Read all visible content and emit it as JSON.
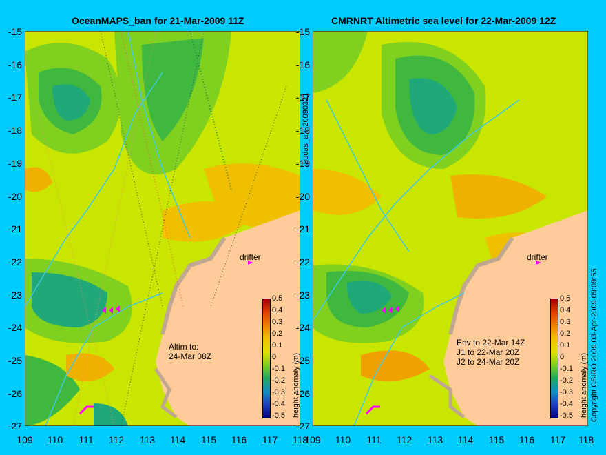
{
  "left_panel": {
    "title": "OceanMAPS_ban for 21-Mar-2009 11Z",
    "annotation": "Altim to:\n24-Mar 08Z",
    "drifter_label": "drifter"
  },
  "right_panel": {
    "title": "CMRNRT Altimetric sea level  for 22-Mar-2009 12Z",
    "annotation": "Env to 22-Mar 14Z\nJ1 to 22-Mar 20Z\nJ2 to 24-Mar 20Z",
    "drifter_label": "drifter"
  },
  "axes": {
    "y_ticks": [
      "-15",
      "-16",
      "-17",
      "-18",
      "-19",
      "-20",
      "-21",
      "-22",
      "-23",
      "-24",
      "-25",
      "-26",
      "-27"
    ],
    "x_ticks": [
      "109",
      "110",
      "111",
      "112",
      "113",
      "114",
      "115",
      "116",
      "117",
      "118"
    ]
  },
  "colorbar": {
    "label": "height anomaly (m)",
    "ticks": [
      "0.5",
      "0.4",
      "0.3",
      "0.2",
      "0.1",
      "0",
      "-0.1",
      "-0.2",
      "-0.3",
      "-0.4",
      "-0.5"
    ],
    "range": [
      -0.5,
      0.5
    ]
  },
  "side_labels": {
    "analysis_id": "bodas_an_20090321",
    "copyright": "Copyright CSIRO 2009  03-Apr-2009 09:09:55"
  },
  "colors": {
    "background": "#00ccff",
    "land": "#ffcc99",
    "shelf": "#c0a890",
    "drifter": "#ff00ff"
  }
}
